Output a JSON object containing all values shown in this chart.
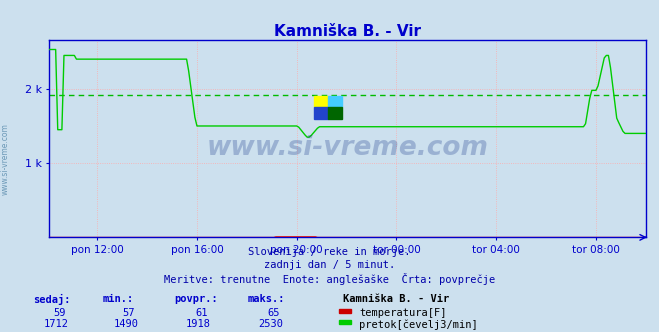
{
  "title": "Kamniška B. - Vir",
  "title_color": "#0000cc",
  "bg_color": "#cce0ee",
  "grid_color_h": "#ffaaaa",
  "grid_color_v": "#ffcccc",
  "xlabel_ticks": [
    "pon 12:00",
    "pon 16:00",
    "pon 20:00",
    "tor 00:00",
    "tor 04:00",
    "tor 08:00"
  ],
  "xlabel_fracs": [
    0.083,
    0.25,
    0.417,
    0.583,
    0.75,
    0.917
  ],
  "ylabel_ticks": [
    "1 k",
    "2 k"
  ],
  "ylabel_values": [
    1000,
    2000
  ],
  "ymin": 0,
  "ymax": 2660,
  "avg_value": 1918,
  "avg_color": "#00bb00",
  "temp_color": "#dd0000",
  "flow_color": "#00cc00",
  "axis_color": "#0000cc",
  "subtitle1": "Slovenija / reke in morje.",
  "subtitle2": "zadnji dan / 5 minut.",
  "subtitle3": "Meritve: trenutne  Enote: anglešaške  Črta: povprečje",
  "subtitle_color": "#0000aa",
  "watermark": "www.si-vreme.com",
  "watermark_color": "#1a3a8a",
  "table_headers": [
    "sedaj:",
    "min.:",
    "povpr.:",
    "maks.:"
  ],
  "table_header_color": "#0000cc",
  "table_label": "Kamniška B. - Vir",
  "row1_values": [
    "59",
    "57",
    "61",
    "65"
  ],
  "row2_values": [
    "1712",
    "1490",
    "1918",
    "2530"
  ],
  "row1_label": "temperatura[F]",
  "row2_label": "pretok[čevelj3/min]",
  "row1_label_color": "#cc0000",
  "row2_label_color": "#00cc00",
  "n_points": 288
}
